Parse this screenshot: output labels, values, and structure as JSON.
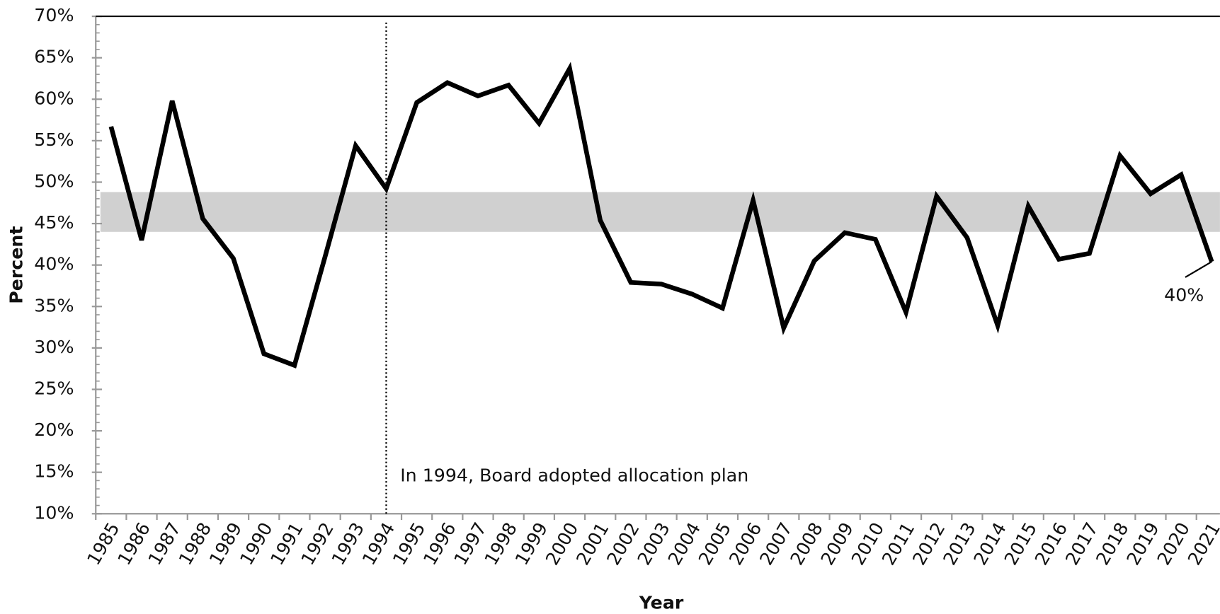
{
  "chart_data": {
    "type": "line",
    "x_label": "Year",
    "y_label": "Percent",
    "categories": [
      "1985",
      "1986",
      "1987",
      "1988",
      "1989",
      "1990",
      "1991",
      "1992",
      "1993",
      "1994",
      "1995",
      "1996",
      "1997",
      "1998",
      "1999",
      "2000",
      "2001",
      "2002",
      "2003",
      "2004",
      "2005",
      "2006",
      "2007",
      "2008",
      "2009",
      "2010",
      "2011",
      "2012",
      "2013",
      "2014",
      "2015",
      "2016",
      "2017",
      "2018",
      "2019",
      "2020",
      "2021"
    ],
    "series": [
      {
        "color": "#000000",
        "values": [
          56.7,
          43.0,
          59.8,
          45.6,
          40.8,
          29.3,
          27.9,
          41.0,
          54.4,
          49.2,
          59.6,
          62.0,
          60.4,
          61.7,
          57.1,
          63.7,
          45.4,
          37.9,
          37.7,
          36.5,
          34.8,
          47.8,
          32.4,
          40.5,
          43.9,
          43.1,
          34.3,
          48.3,
          43.3,
          32.7,
          47.1,
          40.7,
          41.4,
          53.2,
          48.6,
          50.9,
          40.4
        ],
        "value_labels": [
          null,
          null,
          null,
          null,
          null,
          null,
          null,
          null,
          null,
          null,
          null,
          null,
          null,
          null,
          null,
          null,
          null,
          null,
          null,
          null,
          null,
          null,
          null,
          null,
          null,
          null,
          null,
          null,
          null,
          null,
          null,
          null,
          null,
          null,
          null,
          null,
          "40%"
        ]
      }
    ],
    "ylim": [
      10,
      70
    ],
    "yticks": [
      {
        "value": 10,
        "label": "10%"
      },
      {
        "value": 15,
        "label": "15%"
      },
      {
        "value": 20,
        "label": "20%"
      },
      {
        "value": 25,
        "label": "25%"
      },
      {
        "value": 30,
        "label": "30%"
      },
      {
        "value": 35,
        "label": "35%"
      },
      {
        "value": 40,
        "label": "40%"
      },
      {
        "value": 45,
        "label": "45%"
      },
      {
        "value": 50,
        "label": "50%"
      },
      {
        "value": 55,
        "label": "55%"
      },
      {
        "value": 60,
        "label": "60%"
      },
      {
        "value": 65,
        "label": "65%"
      },
      {
        "value": 70,
        "label": "70%"
      }
    ],
    "shaded_range": {
      "ylim": [
        44,
        48.8
      ],
      "color": "#d0d0d0"
    },
    "annotation": {
      "category_index": 9,
      "text": "In 1994, Board adopted allocation plan"
    }
  }
}
